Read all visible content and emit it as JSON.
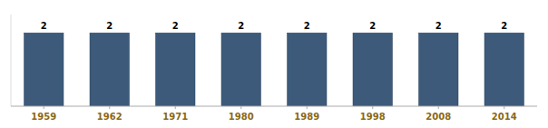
{
  "chart_data": {
    "type": "bar",
    "categories": [
      "1959",
      "1962",
      "1971",
      "1980",
      "1989",
      "1998",
      "2008",
      "2014"
    ],
    "values": [
      2,
      2,
      2,
      2,
      2,
      2,
      2,
      2
    ],
    "color": "#3D5A7A",
    "ylim": [
      0,
      2.5
    ],
    "data_labels": true,
    "tick_labels": "x",
    "grid": false
  }
}
